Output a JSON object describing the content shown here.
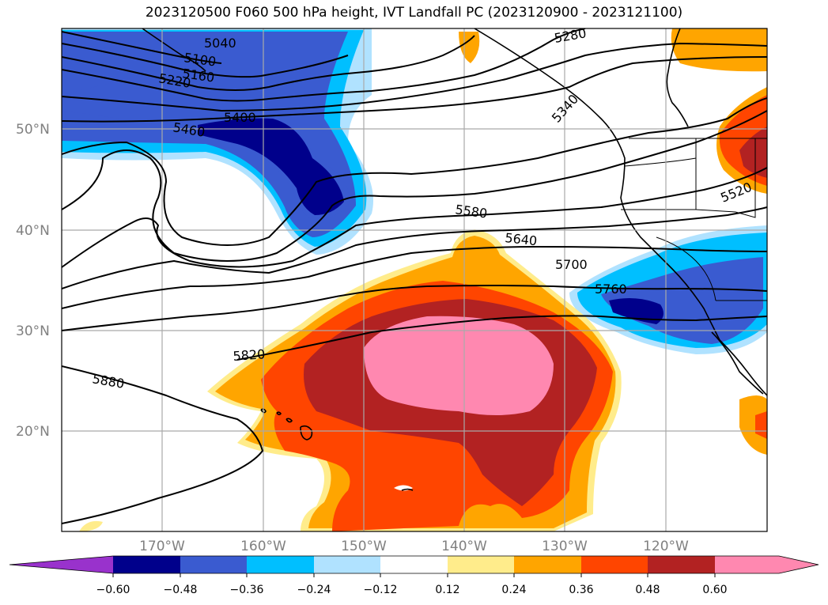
{
  "title": "2023120500 F060 500 hPa height, IVT Landfall PC (2023120900 - 2023121100)",
  "map": {
    "lat_labels": [
      "50°N",
      "40°N",
      "30°N",
      "20°N"
    ],
    "lon_labels": [
      "170°W",
      "160°W",
      "150°W",
      "140°W",
      "130°W",
      "120°W"
    ],
    "contour_labels": [
      "5040",
      "5100",
      "5160",
      "5220",
      "5400",
      "5460",
      "5280",
      "5340",
      "5520",
      "5580",
      "5640",
      "5700",
      "5760",
      "5820",
      "5880"
    ],
    "grid_color": "#a9a9a9",
    "contour_color": "#000000"
  },
  "colorbar": {
    "ticks": [
      "−0.60",
      "−0.48",
      "−0.36",
      "−0.24",
      "−0.12",
      "0.12",
      "0.24",
      "0.36",
      "0.48",
      "0.60"
    ],
    "colors": {
      "under": "#9932cc",
      "c1": "#00008b",
      "c2": "#3a5bd0",
      "c3": "#00bfff",
      "c4": "#b0e2ff",
      "c5": "#ffffff",
      "c6": "#ffec8b",
      "c7": "#ffa500",
      "c8": "#ff4500",
      "c9": "#b22222",
      "over": "#ff88b0"
    }
  }
}
